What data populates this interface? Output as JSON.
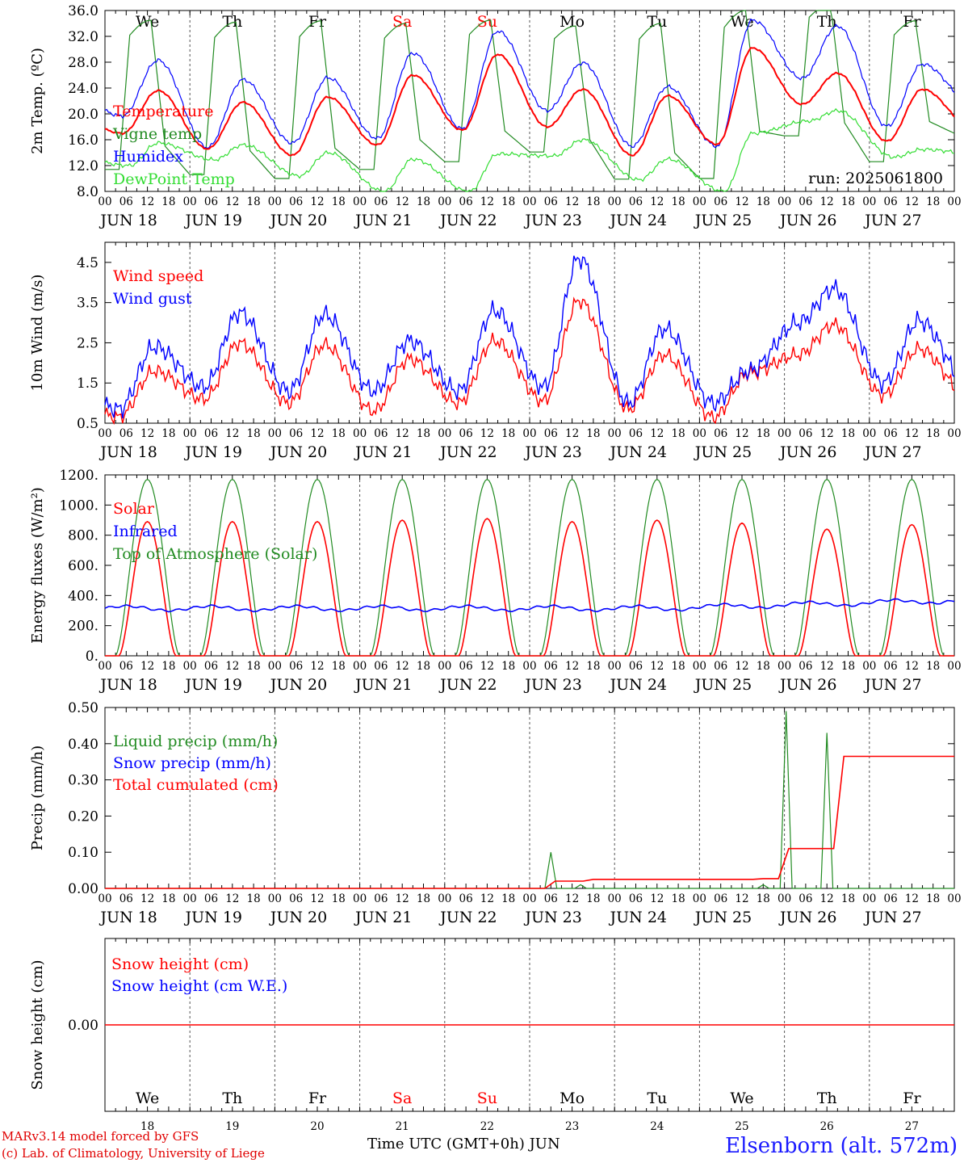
{
  "days": {
    "dates": [
      "JUN 18",
      "JUN 19",
      "JUN 20",
      "JUN 21",
      "JUN 22",
      "JUN 23",
      "JUN 24",
      "JUN 25",
      "JUN 26",
      "JUN 27"
    ],
    "weekdays": [
      "We",
      "Th",
      "Fr",
      "Sa",
      "Su",
      "Mo",
      "Tu",
      "We",
      "Th",
      "Fr"
    ],
    "day_numbers": [
      "18",
      "19",
      "20",
      "21",
      "22",
      "23",
      "24",
      "25",
      "26",
      "27"
    ],
    "weekend_flags": [
      false,
      false,
      false,
      true,
      true,
      false,
      false,
      false,
      false,
      false
    ],
    "hour_ticks": [
      "00",
      "06",
      "12",
      "18"
    ],
    "final_hour_tick": "00"
  },
  "colors": {
    "red": "#ff0000",
    "green": "#228b22",
    "blue": "#0000ff",
    "light_green": "#33dd33",
    "weekend_red": "#ff0000",
    "grid": "#555555"
  },
  "footer": {
    "model_line": "MARv3.14 model forced by GFS",
    "credit_line": "(c) Lab. of Climatology, University of Liege",
    "axis_title": "Time UTC (GMT+0h) JUN",
    "station": "Elsenborn (alt. 572m)"
  },
  "chart_data": [
    {
      "type": "line",
      "id": "temperature",
      "ylabel": "2m Temp. (ºC)",
      "ylim": [
        8,
        36
      ],
      "yticks": [
        "8.0",
        "12.0",
        "16.0",
        "20.0",
        "24.0",
        "28.0",
        "32.0",
        "36.0"
      ],
      "xlabel": "",
      "run_label": "run: 2025061800",
      "series": [
        {
          "name": "Temperature",
          "color": "red",
          "min": [
            17.0,
            14.6,
            13.6,
            15.2,
            17.5,
            18.0,
            13.6,
            15.3,
            21.5,
            15.8
          ],
          "max": [
            23.6,
            21.8,
            22.6,
            26.0,
            29.2,
            23.8,
            22.8,
            30.2,
            26.3,
            23.8
          ],
          "end": 18.0
        },
        {
          "name": "Vigne temp",
          "color": "green",
          "min": [
            11.4,
            10.6,
            10.0,
            11.4,
            12.6,
            14.1,
            9.9,
            10.0,
            16.6,
            12.6
          ],
          "max": [
            34.5,
            34.2,
            34.4,
            34.0,
            34.5,
            33.6,
            34.0,
            36.0,
            37.0,
            34.4
          ],
          "end": 17.0
        },
        {
          "name": "Humidex",
          "color": "blue",
          "min": [
            19.7,
            14.8,
            15.5,
            16.2,
            17.7,
            20.5,
            15.0,
            15.0,
            25.5,
            18.1
          ],
          "max": [
            28.3,
            25.3,
            25.6,
            29.4,
            32.8,
            27.9,
            24.2,
            34.5,
            33.6,
            27.7
          ],
          "end": 21.8
        },
        {
          "name": "DewPoint Temp",
          "color": "light_green",
          "min": [
            12.0,
            12.9,
            10.4,
            8.0,
            8.0,
            13.5,
            9.8,
            8.0,
            18.9,
            13.3
          ],
          "max": [
            15.5,
            15.2,
            14.0,
            13.0,
            13.8,
            16.0,
            13.0,
            17.0,
            20.5,
            14.5
          ],
          "end": 13.8
        }
      ]
    },
    {
      "type": "line",
      "id": "wind",
      "ylabel": "10m Wind (m/s)",
      "ylim": [
        0.5,
        5.0
      ],
      "yticks": [
        "0.5",
        "1.5",
        "2.5",
        "3.5",
        "4.5"
      ],
      "xlabel": "",
      "series": [
        {
          "name": "Wind speed",
          "color": "red",
          "min": [
            0.65,
            1.1,
            1.0,
            0.8,
            1.0,
            1.05,
            0.85,
            0.65,
            2.2,
            1.2
          ],
          "max": [
            1.8,
            2.5,
            2.45,
            2.1,
            2.55,
            3.55,
            2.2,
            1.75,
            2.95,
            2.35
          ],
          "end": 1.2
        },
        {
          "name": "Wind gust",
          "color": "blue",
          "min": [
            0.85,
            1.4,
            1.3,
            1.3,
            1.3,
            1.4,
            1.0,
            1.0,
            3.0,
            1.5
          ],
          "max": [
            2.4,
            3.25,
            3.2,
            2.55,
            3.3,
            4.6,
            2.85,
            1.8,
            3.85,
            3.05
          ],
          "end": 1.5
        }
      ]
    },
    {
      "type": "line",
      "id": "energy",
      "ylabel": "Energy fluxes (W/m²)",
      "ylim": [
        0,
        1200
      ],
      "yticks": [
        "0.",
        "200.",
        "400.",
        "600.",
        "800.",
        "1000.",
        "1200."
      ],
      "xlabel": "",
      "series": [
        {
          "name": "Solar",
          "color": "red",
          "daily_peak": [
            890,
            890,
            890,
            900,
            910,
            890,
            900,
            880,
            840,
            870
          ]
        },
        {
          "name": "Infrared",
          "color": "blue",
          "range": [
            290,
            400
          ],
          "start": 315,
          "end": 380
        },
        {
          "name": "Top of Atmosphere (Solar)",
          "color": "green",
          "daily_peak": [
            1170,
            1170,
            1170,
            1170,
            1170,
            1170,
            1170,
            1170,
            1170,
            1170
          ]
        }
      ]
    },
    {
      "type": "line",
      "id": "precip",
      "ylabel": "Precip (mm/h)",
      "ylim": [
        0,
        0.5
      ],
      "yticks": [
        "0.00",
        "0.10",
        "0.20",
        "0.30",
        "0.40",
        "0.50"
      ],
      "xlabel": "",
      "series": [
        {
          "name": "Liquid precip (mm/h)",
          "color": "green",
          "peaks": [
            {
              "day": 5.25,
              "value": 0.1
            },
            {
              "day": 5.6,
              "value": 0.01
            },
            {
              "day": 7.75,
              "value": 0.01
            },
            {
              "day": 8.02,
              "value": 0.49
            },
            {
              "day": 8.5,
              "value": 0.43
            }
          ]
        },
        {
          "name": "Snow precip (mm/h)",
          "color": "blue",
          "values": []
        },
        {
          "name": "Total cumulated (cm)",
          "color": "red",
          "steps": [
            {
              "day": 5.3,
              "value": 0.02
            },
            {
              "day": 5.75,
              "value": 0.025
            },
            {
              "day": 7.75,
              "value": 0.027
            },
            {
              "day": 8.05,
              "value": 0.11
            },
            {
              "day": 8.7,
              "value": 0.365
            }
          ]
        }
      ]
    },
    {
      "type": "line",
      "id": "snow",
      "ylabel": "Snow height (cm)",
      "ylim": [
        -1,
        1
      ],
      "yticks": [
        "0.00"
      ],
      "xlabel": "Time UTC (GMT+0h) JUN",
      "series": [
        {
          "name": "Snow height (cm)",
          "color": "red",
          "constant": 0.0
        },
        {
          "name": "Snow height (cm W.E.)",
          "color": "blue",
          "constant": 0.0
        }
      ]
    }
  ]
}
